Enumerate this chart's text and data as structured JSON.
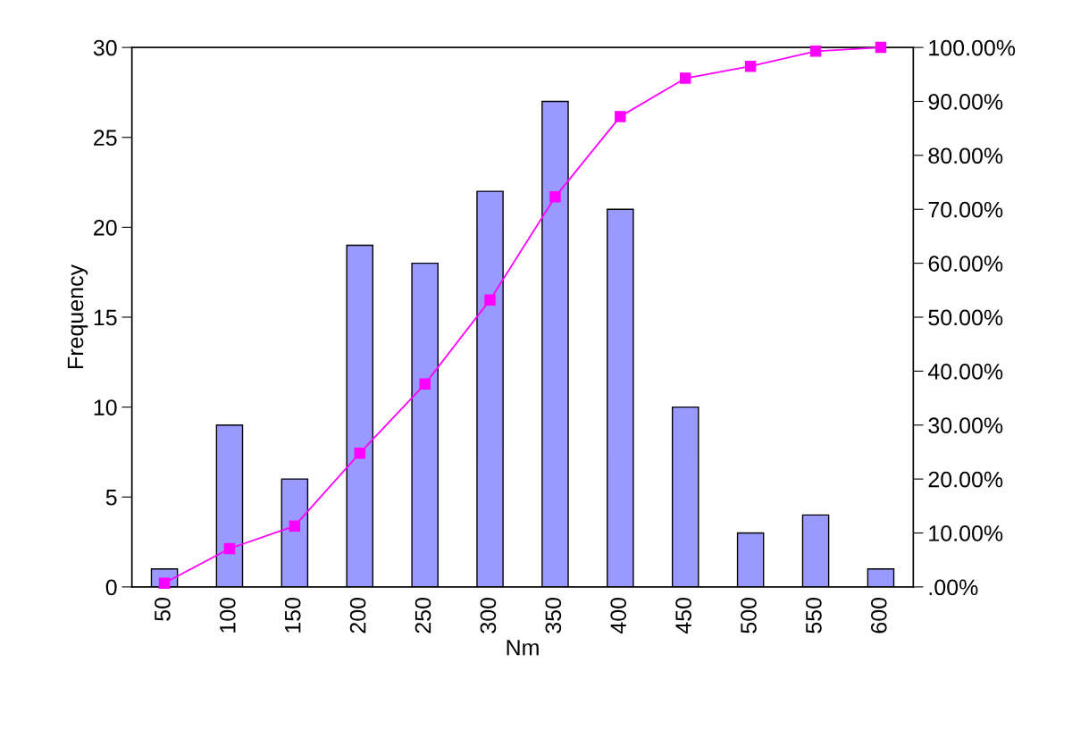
{
  "chart_data": {
    "type": "bar",
    "xlabel": "Nm",
    "ylabel": "Frequency",
    "categories": [
      "50",
      "100",
      "150",
      "200",
      "250",
      "300",
      "350",
      "400",
      "450",
      "500",
      "550",
      "600"
    ],
    "series": [
      {
        "color": "#9999ff",
        "values": [
          1,
          9,
          6,
          19,
          18,
          22,
          27,
          21,
          10,
          3,
          4,
          1
        ]
      },
      {
        "type": "line",
        "axis": "y2",
        "color": "#ff00ff",
        "marker": "square",
        "line_style": "solid",
        "values": [
          0.7,
          7.1,
          11.3,
          24.8,
          37.6,
          53.2,
          72.3,
          87.2,
          94.3,
          96.5,
          99.3,
          100
        ]
      }
    ],
    "ylim": [
      0,
      30
    ],
    "yticks": [
      0,
      5,
      10,
      15,
      20,
      25,
      30
    ],
    "y2lim": [
      0,
      100
    ],
    "y2ticks": [
      {
        "value": 0,
        "label": ".00%"
      },
      {
        "value": 10,
        "label": "10.00%"
      },
      {
        "value": 20,
        "label": "20.00%"
      },
      {
        "value": 30,
        "label": "30.00%"
      },
      {
        "value": 40,
        "label": "40.00%"
      },
      {
        "value": 50,
        "label": "50.00%"
      },
      {
        "value": 60,
        "label": "60.00%"
      },
      {
        "value": 70,
        "label": "70.00%"
      },
      {
        "value": 80,
        "label": "80.00%"
      },
      {
        "value": 90,
        "label": "90.00%"
      },
      {
        "value": 100,
        "label": "100.00%"
      }
    ],
    "grid": false,
    "legend": false
  }
}
